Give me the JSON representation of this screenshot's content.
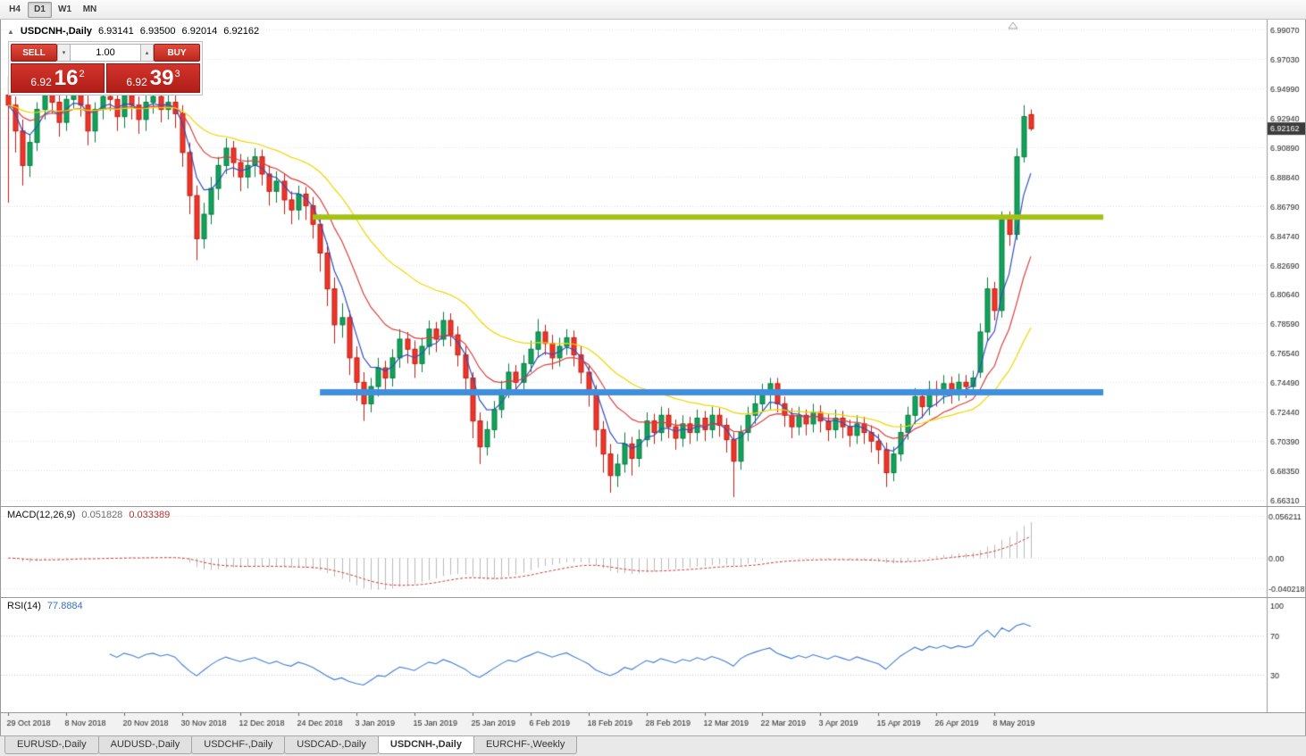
{
  "toolbar": {
    "timeframes": [
      "H4",
      "D1",
      "W1",
      "MN"
    ],
    "active": "D1"
  },
  "chart_header": {
    "collapse_icon": "▲",
    "symbol_title": "USDCNH-,Daily",
    "open": "6.93141",
    "high": "6.93500",
    "low": "6.92014",
    "close": "6.92162"
  },
  "trade_panel": {
    "sell_label": "SELL",
    "buy_label": "BUY",
    "volume": "1.00",
    "spin_down": "▾",
    "spin_up": "▴",
    "sell_price": {
      "main": "6.92",
      "pips": "16",
      "point": "2"
    },
    "buy_price": {
      "main": "6.92",
      "pips": "39",
      "point": "3"
    }
  },
  "indicators": {
    "macd": {
      "name": "MACD(12,26,9)",
      "main_value": "0.051828",
      "signal_value": "0.033389"
    },
    "rsi": {
      "name": "RSI(14)",
      "value": "77.8884"
    }
  },
  "tabs": [
    "EURUSD-,Daily",
    "AUDUSD-,Daily",
    "USDCHF-,Daily",
    "USDCAD-,Daily",
    "USDCNH-,Daily",
    "EURCHF-,Weekly"
  ],
  "colors": {
    "grid": "#e2e2e2",
    "axis_text": "#1a1a1a",
    "axis_line": "#9a9a9a",
    "up": "#12a35b",
    "up_border": "#077a3f",
    "down": "#ef352a",
    "down_border": "#bb1d12",
    "tag_bg": "#3c3c3c",
    "tag_text": "#ffffff",
    "marker": "#9a9a9a"
  },
  "chart_data": {
    "type": "candlestick",
    "symbol": "USDCNH-",
    "timeframe": "Daily",
    "ohlc_current": {
      "open": 6.93141,
      "high": 6.935,
      "low": 6.92014,
      "close": 6.92162
    },
    "price_tag": "6.92162",
    "y_axis_labels": [
      "6.99070",
      "6.97030",
      "6.94990",
      "6.92940",
      "6.90890",
      "6.88840",
      "6.86790",
      "6.84740",
      "6.82690",
      "6.80640",
      "6.78590",
      "6.76540",
      "6.74490",
      "6.72440",
      "6.70390",
      "6.68350",
      "6.66310"
    ],
    "x_labels": [
      {
        "i": 0,
        "t": "29 Oct 2018"
      },
      {
        "i": 8,
        "t": "8 Nov 2018"
      },
      {
        "i": 16,
        "t": "20 Nov 2018"
      },
      {
        "i": 24,
        "t": "30 Nov 2018"
      },
      {
        "i": 32,
        "t": "12 Dec 2018"
      },
      {
        "i": 40,
        "t": "24 Dec 2018"
      },
      {
        "i": 48,
        "t": "3 Jan 2019"
      },
      {
        "i": 56,
        "t": "15 Jan 2019"
      },
      {
        "i": 64,
        "t": "25 Jan 2019"
      },
      {
        "i": 72,
        "t": "6 Feb 2019"
      },
      {
        "i": 80,
        "t": "18 Feb 2019"
      },
      {
        "i": 88,
        "t": "28 Feb 2019"
      },
      {
        "i": 96,
        "t": "12 Mar 2019"
      },
      {
        "i": 104,
        "t": "22 Mar 2019"
      },
      {
        "i": 112,
        "t": "3 Apr 2019"
      },
      {
        "i": 120,
        "t": "15 Apr 2019"
      },
      {
        "i": 128,
        "t": "26 Apr 2019"
      },
      {
        "i": 136,
        "t": "8 May 2019"
      }
    ],
    "candles": [
      [
        6.945,
        6.958,
        6.87,
        6.938
      ],
      [
        6.938,
        6.944,
        6.905,
        6.92
      ],
      [
        6.92,
        6.928,
        6.882,
        6.896
      ],
      [
        6.896,
        6.918,
        6.888,
        6.912
      ],
      [
        6.912,
        6.94,
        6.906,
        6.935
      ],
      [
        6.935,
        6.956,
        6.928,
        6.948
      ],
      [
        6.948,
        6.955,
        6.932,
        6.94
      ],
      [
        6.94,
        6.947,
        6.916,
        6.926
      ],
      [
        6.926,
        6.948,
        6.92,
        6.942
      ],
      [
        6.942,
        6.954,
        6.936,
        6.948
      ],
      [
        6.948,
        6.953,
        6.93,
        6.938
      ],
      [
        6.938,
        6.945,
        6.91,
        6.92
      ],
      [
        6.92,
        6.94,
        6.912,
        6.935
      ],
      [
        6.935,
        6.952,
        6.928,
        6.944
      ],
      [
        6.944,
        6.952,
        6.934,
        6.942
      ],
      [
        6.942,
        6.948,
        6.92,
        6.93
      ],
      [
        6.93,
        6.95,
        6.922,
        6.945
      ],
      [
        6.945,
        6.952,
        6.928,
        6.938
      ],
      [
        6.938,
        6.944,
        6.918,
        6.928
      ],
      [
        6.928,
        6.946,
        6.92,
        6.94
      ],
      [
        6.94,
        6.95,
        6.932,
        6.944
      ],
      [
        6.944,
        6.95,
        6.926,
        6.935
      ],
      [
        6.935,
        6.948,
        6.928,
        6.94
      ],
      [
        6.94,
        6.946,
        6.922,
        6.932
      ],
      [
        6.932,
        6.938,
        6.895,
        6.905
      ],
      [
        6.905,
        6.912,
        6.862,
        6.875
      ],
      [
        6.875,
        6.882,
        6.83,
        6.845
      ],
      [
        6.845,
        6.87,
        6.838,
        6.862
      ],
      [
        6.862,
        6.888,
        6.855,
        6.88
      ],
      [
        6.88,
        6.902,
        6.872,
        6.896
      ],
      [
        6.896,
        6.915,
        6.89,
        6.908
      ],
      [
        6.908,
        6.913,
        6.888,
        6.898
      ],
      [
        6.898,
        6.904,
        6.878,
        6.888
      ],
      [
        6.888,
        6.902,
        6.88,
        6.896
      ],
      [
        6.896,
        6.908,
        6.888,
        6.902
      ],
      [
        6.902,
        6.907,
        6.882,
        6.89
      ],
      [
        6.89,
        6.896,
        6.868,
        6.878
      ],
      [
        6.878,
        6.892,
        6.87,
        6.885
      ],
      [
        6.885,
        6.89,
        6.862,
        6.872
      ],
      [
        6.872,
        6.878,
        6.855,
        6.865
      ],
      [
        6.865,
        6.882,
        6.858,
        6.876
      ],
      [
        6.876,
        6.881,
        6.858,
        6.868
      ],
      [
        6.868,
        6.874,
        6.845,
        6.855
      ],
      [
        6.855,
        6.862,
        6.822,
        6.835
      ],
      [
        6.835,
        6.842,
        6.798,
        6.81
      ],
      [
        6.81,
        6.818,
        6.772,
        6.785
      ],
      [
        6.785,
        6.8,
        6.776,
        6.79
      ],
      [
        6.79,
        6.795,
        6.75,
        6.762
      ],
      [
        6.762,
        6.77,
        6.732,
        6.745
      ],
      [
        6.745,
        6.752,
        6.718,
        6.73
      ],
      [
        6.73,
        6.748,
        6.724,
        6.742
      ],
      [
        6.742,
        6.762,
        6.735,
        6.755
      ],
      [
        6.755,
        6.76,
        6.738,
        6.748
      ],
      [
        6.748,
        6.768,
        6.742,
        6.762
      ],
      [
        6.762,
        6.782,
        6.755,
        6.775
      ],
      [
        6.775,
        6.78,
        6.758,
        6.768
      ],
      [
        6.768,
        6.774,
        6.748,
        6.758
      ],
      [
        6.758,
        6.776,
        6.752,
        6.77
      ],
      [
        6.77,
        6.788,
        6.764,
        6.782
      ],
      [
        6.782,
        6.787,
        6.766,
        6.775
      ],
      [
        6.775,
        6.794,
        6.77,
        6.788
      ],
      [
        6.788,
        6.793,
        6.77,
        6.778
      ],
      [
        6.778,
        6.784,
        6.756,
        6.764
      ],
      [
        6.764,
        6.77,
        6.74,
        6.748
      ],
      [
        6.748,
        6.752,
        6.706,
        6.718
      ],
      [
        6.718,
        6.724,
        6.688,
        6.7
      ],
      [
        6.7,
        6.718,
        6.694,
        6.712
      ],
      [
        6.712,
        6.732,
        6.706,
        6.726
      ],
      [
        6.726,
        6.746,
        6.72,
        6.74
      ],
      [
        6.74,
        6.758,
        6.734,
        6.752
      ],
      [
        6.752,
        6.757,
        6.738,
        6.745
      ],
      [
        6.745,
        6.764,
        6.74,
        6.758
      ],
      [
        6.758,
        6.774,
        6.752,
        6.768
      ],
      [
        6.768,
        6.789,
        6.762,
        6.78
      ],
      [
        6.78,
        6.785,
        6.764,
        6.772
      ],
      [
        6.772,
        6.778,
        6.754,
        6.762
      ],
      [
        6.762,
        6.776,
        6.756,
        6.77
      ],
      [
        6.77,
        6.782,
        6.764,
        6.776
      ],
      [
        6.776,
        6.781,
        6.756,
        6.764
      ],
      [
        6.764,
        6.77,
        6.744,
        6.752
      ],
      [
        6.752,
        6.757,
        6.728,
        6.738
      ],
      [
        6.738,
        6.743,
        6.7,
        6.712
      ],
      [
        6.712,
        6.718,
        6.682,
        6.695
      ],
      [
        6.695,
        6.702,
        6.668,
        6.68
      ],
      [
        6.68,
        6.695,
        6.672,
        6.688
      ],
      [
        6.688,
        6.71,
        6.682,
        6.702
      ],
      [
        6.702,
        6.707,
        6.68,
        6.692
      ],
      [
        6.692,
        6.712,
        6.686,
        6.705
      ],
      [
        6.705,
        6.724,
        6.7,
        6.718
      ],
      [
        6.718,
        6.723,
        6.702,
        6.71
      ],
      [
        6.71,
        6.728,
        6.704,
        6.722
      ],
      [
        6.722,
        6.727,
        6.706,
        6.714
      ],
      [
        6.714,
        6.719,
        6.698,
        6.706
      ],
      [
        6.706,
        6.722,
        6.7,
        6.716
      ],
      [
        6.716,
        6.721,
        6.702,
        6.71
      ],
      [
        6.71,
        6.726,
        6.704,
        6.72
      ],
      [
        6.72,
        6.725,
        6.704,
        6.712
      ],
      [
        6.712,
        6.728,
        6.706,
        6.722
      ],
      [
        6.722,
        6.727,
        6.707,
        6.715
      ],
      [
        6.715,
        6.72,
        6.696,
        6.705
      ],
      [
        6.705,
        6.71,
        6.665,
        6.69
      ],
      [
        6.69,
        6.715,
        6.684,
        6.71
      ],
      [
        6.71,
        6.728,
        6.704,
        6.722
      ],
      [
        6.722,
        6.736,
        6.716,
        6.73
      ],
      [
        6.73,
        6.744,
        6.724,
        6.738
      ],
      [
        6.738,
        6.748,
        6.726,
        6.744
      ],
      [
        6.744,
        6.748,
        6.724,
        6.73
      ],
      [
        6.73,
        6.735,
        6.714,
        6.722
      ],
      [
        6.722,
        6.727,
        6.706,
        6.714
      ],
      [
        6.714,
        6.728,
        6.708,
        6.722
      ],
      [
        6.722,
        6.726,
        6.708,
        6.716
      ],
      [
        6.716,
        6.73,
        6.71,
        6.724
      ],
      [
        6.724,
        6.729,
        6.71,
        6.718
      ],
      [
        6.718,
        6.723,
        6.704,
        6.712
      ],
      [
        6.712,
        6.726,
        6.706,
        6.72
      ],
      [
        6.72,
        6.725,
        6.706,
        6.714
      ],
      [
        6.714,
        6.719,
        6.7,
        6.708
      ],
      [
        6.708,
        6.722,
        6.702,
        6.716
      ],
      [
        6.716,
        6.721,
        6.702,
        6.71
      ],
      [
        6.71,
        6.715,
        6.696,
        6.704
      ],
      [
        6.704,
        6.709,
        6.688,
        6.698
      ],
      [
        6.698,
        6.703,
        6.672,
        6.682
      ],
      [
        6.682,
        6.7,
        6.676,
        6.695
      ],
      [
        6.695,
        6.716,
        6.69,
        6.71
      ],
      [
        6.71,
        6.728,
        6.705,
        6.722
      ],
      [
        6.722,
        6.741,
        6.716,
        6.735
      ],
      [
        6.735,
        6.74,
        6.72,
        6.728
      ],
      [
        6.728,
        6.746,
        6.722,
        6.74
      ],
      [
        6.74,
        6.746,
        6.728,
        6.736
      ],
      [
        6.736,
        6.75,
        6.73,
        6.744
      ],
      [
        6.744,
        6.749,
        6.73,
        6.738
      ],
      [
        6.738,
        6.751,
        6.732,
        6.745
      ],
      [
        6.745,
        6.75,
        6.734,
        6.742
      ],
      [
        6.742,
        6.753,
        6.736,
        6.748
      ],
      [
        6.752,
        6.786,
        6.748,
        6.78
      ],
      [
        6.78,
        6.818,
        6.774,
        6.81
      ],
      [
        6.81,
        6.815,
        6.788,
        6.795
      ],
      [
        6.795,
        6.864,
        6.79,
        6.858
      ],
      [
        6.858,
        6.864,
        6.84,
        6.848
      ],
      [
        6.848,
        6.908,
        6.844,
        6.902
      ],
      [
        6.902,
        6.938,
        6.898,
        6.93
      ],
      [
        6.93141,
        6.935,
        6.92014,
        6.92162
      ]
    ],
    "moving_averages": [
      {
        "name": "fast-ma",
        "period": 5,
        "color": "#2f4fc0"
      },
      {
        "name": "mid-ma",
        "period": 13,
        "color": "#d84040"
      },
      {
        "name": "slow-ma",
        "period": 30,
        "color": "#efd500"
      }
    ],
    "hlines": [
      {
        "name": "resistance-line",
        "price": 6.86,
        "color": "#a5c117",
        "width": 6,
        "start_index": 42,
        "end_index": 151
      },
      {
        "name": "support-line",
        "price": 6.738,
        "color": "#3f8fdd",
        "width": 7,
        "start_index": 43,
        "end_index": 151
      }
    ],
    "macd": {
      "fast": 12,
      "slow": 26,
      "signal": 9,
      "main_value": 0.051828,
      "signal_value": 0.033389,
      "axis_labels": [
        "0.056211",
        "0.00",
        "-0.040218"
      ],
      "axis_values": [
        0.056211,
        0,
        -0.040218
      ],
      "hist_color": "#b9b9b9",
      "signal_color": "#c43c3c"
    },
    "rsi": {
      "period": 14,
      "value": 77.8884,
      "axis_labels": [
        "100",
        "70",
        "30"
      ],
      "levels": [
        70,
        30
      ],
      "color": "#3f7bd0"
    }
  }
}
